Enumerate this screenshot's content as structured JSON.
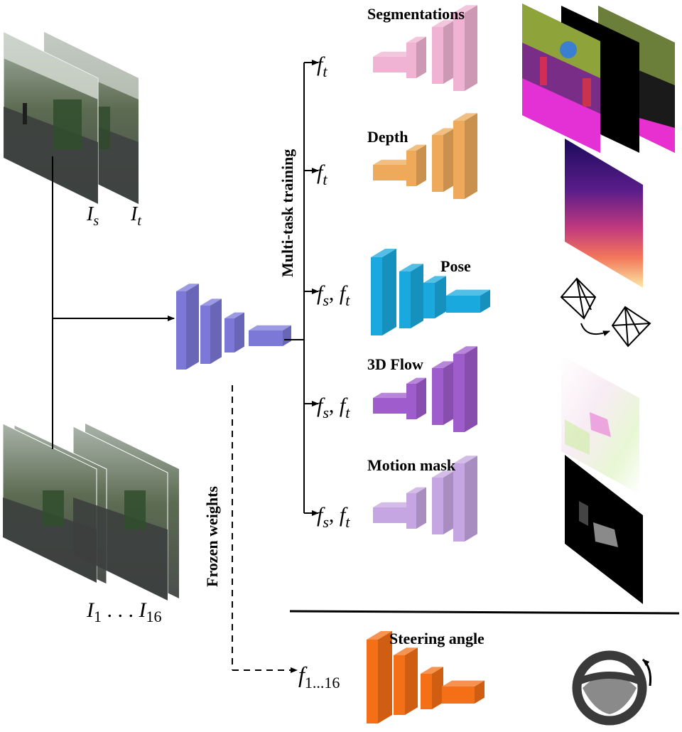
{
  "figure": {
    "input_labels": {
      "source": {
        "base": "I",
        "sub": "s"
      },
      "target": {
        "base": "I",
        "sub": "t"
      },
      "sequence": {
        "first_base": "I",
        "first_sub": "1",
        "dots": " . . . ",
        "last_base": "I",
        "last_sub": "16"
      }
    },
    "side_labels": {
      "multitask": "Multi-task training",
      "frozen": "Frozen weights"
    },
    "feature_symbols": {
      "f": "f",
      "t": "t",
      "s": "s",
      "comma": ", ",
      "range": "1...16"
    },
    "heads": [
      {
        "name": "Segmentations",
        "inputs": "ft",
        "color": "#f0b3d3"
      },
      {
        "name": "Depth",
        "inputs": "ft",
        "color": "#eea95a"
      },
      {
        "name": "Pose",
        "inputs": "fs,ft",
        "color": "#1aa9de"
      },
      {
        "name": "3D Flow",
        "inputs": "fs,ft",
        "color": "#9f5ccc"
      },
      {
        "name": "Motion mask",
        "inputs": "fs,ft",
        "color": "#c6a6e2"
      }
    ],
    "steering": {
      "name": "Steering angle",
      "color": "#f46f16"
    },
    "encoder_color": "#7b78d8"
  }
}
